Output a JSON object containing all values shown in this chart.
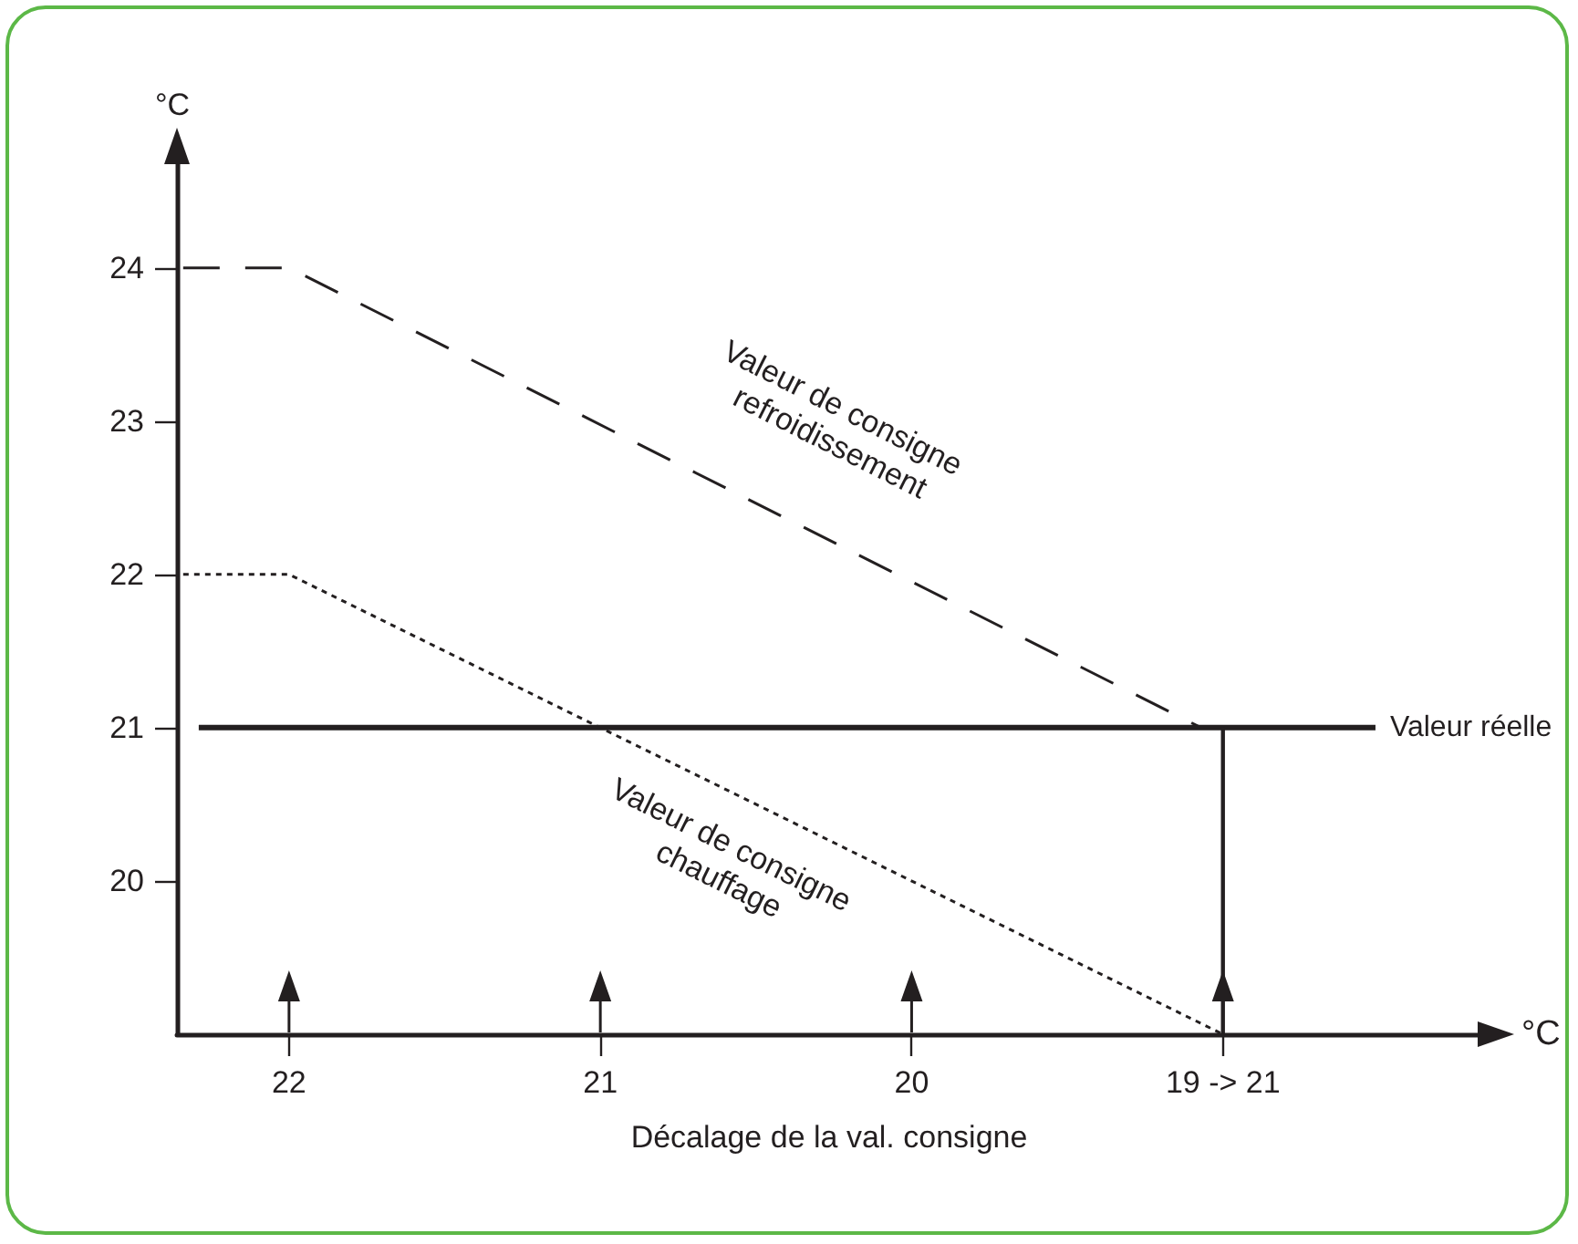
{
  "chart_data": {
    "type": "line",
    "ylabel": "°C",
    "xlabel": "Décalage de la val. consigne",
    "annotations": [
      "°C"
    ],
    "xlim": [
      22.36,
      18.17
    ],
    "xticks": [
      22,
      21,
      20,
      {
        "value": 19,
        "label": "19 -> 21"
      }
    ],
    "ylim": [
      19,
      24.7
    ],
    "yticks": [
      20,
      21,
      22,
      23,
      24
    ],
    "grid": false,
    "legend": false,
    "marker": "none",
    "series": [
      {
        "name": "Valeur de consigne refroidissement",
        "color": "#231f20",
        "line_style": "dashed",
        "x": [
          22.34,
          22,
          19.07
        ],
        "values": [
          24,
          24,
          21
        ]
      },
      {
        "name": "Valeur de consigne chauffage",
        "color": "#231f20",
        "line_style": "dotted",
        "x": [
          22.34,
          22,
          19
        ],
        "values": [
          22,
          22,
          19
        ]
      },
      {
        "name": "Valeur réelle",
        "color": "#231f20",
        "line_style": "solid",
        "x": [
          22.29,
          18.51
        ],
        "values": [
          21,
          21
        ]
      },
      {
        "color": "#231f20",
        "line_style": "solid",
        "x": [
          19,
          19
        ],
        "values": [
          19,
          21
        ]
      }
    ]
  }
}
